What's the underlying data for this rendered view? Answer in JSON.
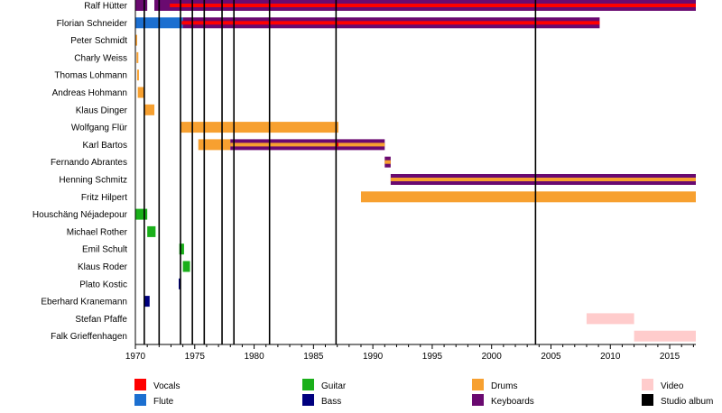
{
  "chart_data": {
    "type": "timeline",
    "title": "",
    "xlabel": "",
    "ylabel": "",
    "xlim": [
      1970,
      2017.2
    ],
    "x_ticks": [
      1970,
      1975,
      1980,
      1985,
      1990,
      1995,
      2000,
      2005,
      2010,
      2015
    ],
    "grid": false,
    "legend_position": "bottom",
    "colors": {
      "Vocals": "#ff0000",
      "Flute": "#1c6fd0",
      "Guitar": "#1aaf1a",
      "Bass": "#00007f",
      "Drums": "#f7a030",
      "Keyboards": "#6a0a70",
      "Video": "#ffcccc",
      "Studio album": "#000000"
    },
    "legend": [
      {
        "role": "Vocals",
        "label": "Vocals"
      },
      {
        "role": "Flute",
        "label": "Flute"
      },
      {
        "role": "Guitar",
        "label": "Guitar"
      },
      {
        "role": "Bass",
        "label": "Bass"
      },
      {
        "role": "Drums",
        "label": "Drums"
      },
      {
        "role": "Keyboards",
        "label": "Keyboards"
      },
      {
        "role": "Video",
        "label": "Video"
      },
      {
        "role": "Studio album",
        "label": "Studio album"
      }
    ],
    "studio_albums": [
      1970.75,
      1972.0,
      1973.8,
      1974.8,
      1975.8,
      1977.3,
      1978.3,
      1981.3,
      1986.9,
      2003.7
    ],
    "members": [
      {
        "name": "Ralf Hütter",
        "segments": [
          {
            "role": "Keyboards",
            "start": 1970.0,
            "end": 1971.0,
            "mode": "full"
          },
          {
            "role": "Keyboards",
            "start": 1971.6,
            "end": 2017.2,
            "mode": "full"
          },
          {
            "role": "Vocals",
            "start": 1972.9,
            "end": 2017.2,
            "mode": "stripe"
          }
        ]
      },
      {
        "name": "Florian Schneider",
        "segments": [
          {
            "role": "Flute",
            "start": 1970.0,
            "end": 1974.0,
            "mode": "full"
          },
          {
            "role": "Keyboards",
            "start": 1974.0,
            "end": 2009.1,
            "mode": "full"
          },
          {
            "role": "Vocals",
            "start": 1973.9,
            "end": 2009.1,
            "mode": "stripe"
          }
        ]
      },
      {
        "name": "Peter Schmidt",
        "segments": [
          {
            "role": "Drums",
            "start": 1970.0,
            "end": 1970.15,
            "mode": "full"
          }
        ]
      },
      {
        "name": "Charly Weiss",
        "segments": [
          {
            "role": "Drums",
            "start": 1970.1,
            "end": 1970.25,
            "mode": "full"
          }
        ]
      },
      {
        "name": "Thomas Lohmann",
        "segments": [
          {
            "role": "Drums",
            "start": 1970.15,
            "end": 1970.3,
            "mode": "full"
          }
        ]
      },
      {
        "name": "Andreas Hohmann",
        "segments": [
          {
            "role": "Drums",
            "start": 1970.2,
            "end": 1970.8,
            "mode": "full"
          }
        ]
      },
      {
        "name": "Klaus Dinger",
        "segments": [
          {
            "role": "Drums",
            "start": 1970.8,
            "end": 1971.6,
            "mode": "full"
          }
        ]
      },
      {
        "name": "Wolfgang Flür",
        "segments": [
          {
            "role": "Drums",
            "start": 1973.8,
            "end": 1987.1,
            "mode": "full"
          }
        ]
      },
      {
        "name": "Karl Bartos",
        "segments": [
          {
            "role": "Drums",
            "start": 1975.3,
            "end": 1978.0,
            "mode": "full"
          },
          {
            "role": "Keyboards",
            "start": 1978.0,
            "end": 1991.0,
            "mode": "full"
          },
          {
            "role": "Drums",
            "start": 1978.0,
            "end": 1991.0,
            "mode": "stripe"
          },
          {
            "role": "Vocals",
            "start": 1986.9,
            "end": 1987.1,
            "mode": "stripe"
          }
        ]
      },
      {
        "name": "Fernando Abrantes",
        "segments": [
          {
            "role": "Keyboards",
            "start": 1991.0,
            "end": 1991.5,
            "mode": "full"
          },
          {
            "role": "Drums",
            "start": 1991.0,
            "end": 1991.5,
            "mode": "stripe"
          }
        ]
      },
      {
        "name": "Henning Schmitz",
        "segments": [
          {
            "role": "Keyboards",
            "start": 1991.5,
            "end": 2017.2,
            "mode": "full"
          },
          {
            "role": "Drums",
            "start": 1991.5,
            "end": 2017.2,
            "mode": "stripe"
          }
        ]
      },
      {
        "name": "Fritz Hilpert",
        "segments": [
          {
            "role": "Drums",
            "start": 1989.0,
            "end": 2017.2,
            "mode": "full"
          }
        ]
      },
      {
        "name": "Houschäng Néjadepour",
        "segments": [
          {
            "role": "Guitar",
            "start": 1970.0,
            "end": 1971.0,
            "mode": "full"
          }
        ]
      },
      {
        "name": "Michael Rother",
        "segments": [
          {
            "role": "Guitar",
            "start": 1971.0,
            "end": 1971.7,
            "mode": "full"
          }
        ]
      },
      {
        "name": "Emil Schult",
        "segments": [
          {
            "role": "Guitar",
            "start": 1973.7,
            "end": 1974.1,
            "mode": "full"
          }
        ]
      },
      {
        "name": "Klaus Roder",
        "segments": [
          {
            "role": "Guitar",
            "start": 1974.0,
            "end": 1974.6,
            "mode": "full"
          }
        ]
      },
      {
        "name": "Plato Kostic",
        "segments": [
          {
            "role": "Bass",
            "start": 1973.65,
            "end": 1973.8,
            "mode": "full"
          }
        ]
      },
      {
        "name": "Eberhard Kranemann",
        "segments": [
          {
            "role": "Bass",
            "start": 1970.8,
            "end": 1971.2,
            "mode": "full"
          }
        ]
      },
      {
        "name": "Stefan Pfaffe",
        "segments": [
          {
            "role": "Video",
            "start": 2008.0,
            "end": 2012.0,
            "mode": "full"
          }
        ]
      },
      {
        "name": "Falk Grieffenhagen",
        "segments": [
          {
            "role": "Video",
            "start": 2012.0,
            "end": 2017.2,
            "mode": "full"
          }
        ]
      }
    ]
  }
}
